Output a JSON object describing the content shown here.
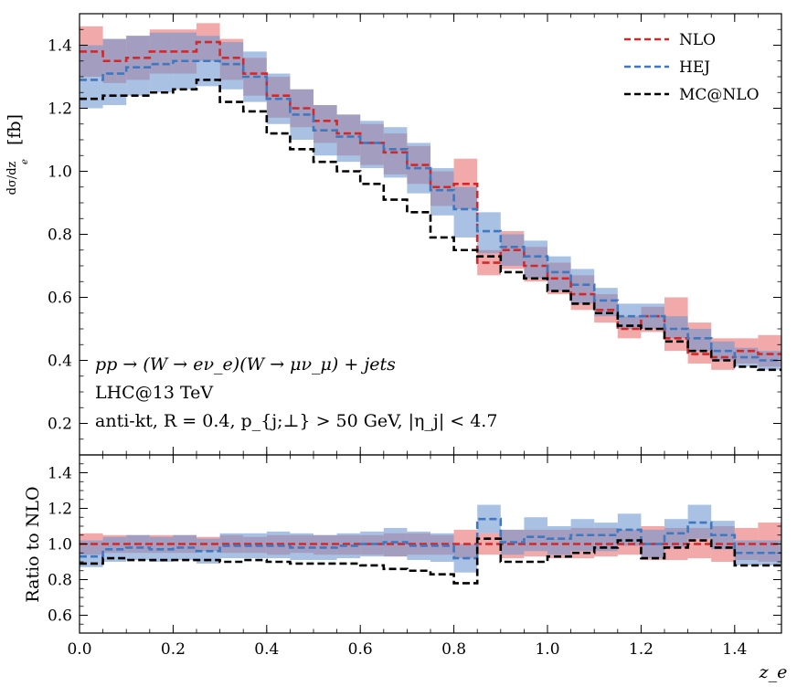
{
  "chart_data": {
    "type": "step",
    "x_edges": [
      0.0,
      0.05,
      0.1,
      0.15,
      0.2,
      0.25,
      0.3,
      0.35,
      0.4,
      0.45,
      0.5,
      0.55,
      0.6,
      0.65,
      0.7,
      0.75,
      0.8,
      0.85,
      0.9,
      0.95,
      1.0,
      1.05,
      1.1,
      1.15,
      1.2,
      1.25,
      1.3,
      1.35,
      1.4,
      1.45,
      1.5
    ],
    "xlabel": "z_e",
    "xlim": [
      0.0,
      1.5
    ],
    "x_ticks": [
      "0.0",
      "0.2",
      "0.4",
      "0.6",
      "0.8",
      "1.0",
      "1.2",
      "1.4"
    ],
    "x_tick_values": [
      0.0,
      0.2,
      0.4,
      0.6,
      0.8,
      1.0,
      1.2,
      1.4
    ],
    "legend": {
      "position": "top-right",
      "entries": [
        {
          "key": "NLO",
          "label": "NLO"
        },
        {
          "key": "HEJ",
          "label": "HEJ"
        },
        {
          "key": "MCNLO",
          "label": "MC@NLO"
        }
      ]
    },
    "colors": {
      "NLO": "#d62728",
      "NLO_band": "#e8706f",
      "HEJ": "#3f77c0",
      "HEJ_band": "#6f98cf",
      "MCNLO": "#000000"
    },
    "main_panel": {
      "ylabel_prefix": "dσ/dz",
      "ylabel_sub": "e",
      "ylabel_unit": "[fb]",
      "ylim": [
        0.1,
        1.5
      ],
      "y_ticks": [
        "0.2",
        "0.4",
        "0.6",
        "0.8",
        "1.0",
        "1.2",
        "1.4"
      ],
      "y_tick_values": [
        0.2,
        0.4,
        0.6,
        0.8,
        1.0,
        1.2,
        1.4
      ],
      "series": [
        {
          "name": "NLO",
          "values": [
            1.38,
            1.35,
            1.36,
            1.38,
            1.38,
            1.41,
            1.36,
            1.31,
            1.24,
            1.2,
            1.16,
            1.12,
            1.09,
            1.06,
            1.02,
            0.95,
            0.96,
            0.71,
            0.75,
            0.7,
            0.66,
            0.61,
            0.56,
            0.5,
            0.54,
            0.47,
            0.42,
            0.41,
            0.43,
            0.42
          ],
          "band_lo": [
            1.3,
            1.28,
            1.29,
            1.31,
            1.31,
            1.35,
            1.29,
            1.24,
            1.17,
            1.14,
            1.09,
            1.05,
            1.02,
            0.99,
            0.96,
            0.89,
            0.88,
            0.67,
            0.69,
            0.65,
            0.61,
            0.56,
            0.52,
            0.47,
            0.49,
            0.43,
            0.39,
            0.37,
            0.39,
            0.38
          ],
          "band_hi": [
            1.46,
            1.42,
            1.43,
            1.45,
            1.45,
            1.47,
            1.42,
            1.36,
            1.3,
            1.26,
            1.21,
            1.18,
            1.15,
            1.12,
            1.08,
            1.0,
            1.04,
            0.75,
            0.81,
            0.76,
            0.71,
            0.67,
            0.61,
            0.54,
            0.57,
            0.6,
            0.52,
            0.47,
            0.47,
            0.48
          ]
        },
        {
          "name": "HEJ",
          "values": [
            1.29,
            1.31,
            1.33,
            1.34,
            1.35,
            1.35,
            1.34,
            1.3,
            1.23,
            1.18,
            1.13,
            1.11,
            1.09,
            1.07,
            1.01,
            0.94,
            0.88,
            0.81,
            0.76,
            0.73,
            0.68,
            0.64,
            0.59,
            0.54,
            0.54,
            0.5,
            0.47,
            0.43,
            0.41,
            0.4
          ],
          "band_lo": [
            1.2,
            1.21,
            1.24,
            1.25,
            1.26,
            1.27,
            1.26,
            1.22,
            1.15,
            1.1,
            1.05,
            1.03,
            1.01,
            0.98,
            0.93,
            0.86,
            0.79,
            0.74,
            0.7,
            0.66,
            0.62,
            0.58,
            0.54,
            0.5,
            0.5,
            0.47,
            0.43,
            0.4,
            0.38,
            0.37
          ],
          "band_hi": [
            1.4,
            1.42,
            1.43,
            1.44,
            1.44,
            1.43,
            1.41,
            1.38,
            1.31,
            1.26,
            1.21,
            1.18,
            1.16,
            1.14,
            1.09,
            1.01,
            0.95,
            0.87,
            0.8,
            0.78,
            0.73,
            0.69,
            0.63,
            0.58,
            0.58,
            0.54,
            0.5,
            0.46,
            0.44,
            0.43
          ]
        },
        {
          "name": "MCNLO",
          "values": [
            1.23,
            1.24,
            1.24,
            1.25,
            1.26,
            1.29,
            1.22,
            1.19,
            1.12,
            1.07,
            1.03,
            1.0,
            0.96,
            0.91,
            0.87,
            0.79,
            0.75,
            0.73,
            0.68,
            0.66,
            0.62,
            0.58,
            0.55,
            0.51,
            0.5,
            0.46,
            0.43,
            0.4,
            0.38,
            0.37
          ]
        }
      ]
    },
    "ratio_panel": {
      "ylabel": "Ratio to NLO",
      "ylim": [
        0.5,
        1.5
      ],
      "y_ticks": [
        "0.6",
        "0.8",
        "1.0",
        "1.2",
        "1.4"
      ],
      "y_tick_values": [
        0.6,
        0.8,
        1.0,
        1.2,
        1.4
      ],
      "series": [
        {
          "name": "NLO",
          "values": [
            1.0,
            1.0,
            1.0,
            1.0,
            1.0,
            1.0,
            1.0,
            1.0,
            1.0,
            1.0,
            1.0,
            1.0,
            1.0,
            1.0,
            1.0,
            1.0,
            1.0,
            1.0,
            1.0,
            1.0,
            1.0,
            1.0,
            1.0,
            1.0,
            1.0,
            1.0,
            1.0,
            1.0,
            1.0,
            1.0
          ],
          "band_lo": [
            0.94,
            0.95,
            0.95,
            0.95,
            0.95,
            0.96,
            0.95,
            0.95,
            0.94,
            0.95,
            0.94,
            0.94,
            0.94,
            0.93,
            0.94,
            0.94,
            0.92,
            0.94,
            0.92,
            0.93,
            0.92,
            0.92,
            0.93,
            0.94,
            0.91,
            0.91,
            0.92,
            0.9,
            0.91,
            0.9
          ],
          "band_hi": [
            1.06,
            1.05,
            1.05,
            1.05,
            1.05,
            1.04,
            1.05,
            1.04,
            1.05,
            1.05,
            1.05,
            1.05,
            1.05,
            1.06,
            1.06,
            1.05,
            1.08,
            1.06,
            1.08,
            1.08,
            1.08,
            1.09,
            1.09,
            1.08,
            1.1,
            1.09,
            1.09,
            1.1,
            1.09,
            1.12
          ]
        },
        {
          "name": "HEJ",
          "values": [
            0.93,
            0.97,
            0.98,
            0.97,
            0.98,
            0.96,
            0.99,
            0.99,
            0.99,
            0.98,
            0.98,
            0.99,
            1.0,
            1.01,
            0.99,
            0.99,
            0.92,
            1.14,
            1.01,
            1.04,
            1.03,
            1.05,
            1.05,
            1.08,
            1.0,
            1.06,
            1.12,
            1.05,
            0.95,
            0.95
          ],
          "band_lo": [
            0.87,
            0.9,
            0.91,
            0.9,
            0.91,
            0.89,
            0.92,
            0.92,
            0.92,
            0.91,
            0.91,
            0.92,
            0.93,
            0.93,
            0.91,
            0.9,
            0.84,
            1.06,
            0.94,
            0.96,
            0.94,
            0.96,
            0.96,
            0.99,
            0.92,
            0.98,
            1.03,
            0.97,
            0.88,
            0.88
          ],
          "band_hi": [
            1.02,
            1.04,
            1.05,
            1.04,
            1.05,
            1.03,
            1.06,
            1.06,
            1.07,
            1.06,
            1.05,
            1.06,
            1.07,
            1.09,
            1.07,
            1.06,
            1.0,
            1.22,
            1.08,
            1.15,
            1.1,
            1.14,
            1.12,
            1.17,
            1.08,
            1.14,
            1.22,
            1.13,
            1.02,
            1.02
          ]
        },
        {
          "name": "MCNLO",
          "values": [
            0.89,
            0.92,
            0.91,
            0.91,
            0.91,
            0.91,
            0.9,
            0.91,
            0.9,
            0.89,
            0.89,
            0.89,
            0.88,
            0.86,
            0.85,
            0.83,
            0.78,
            1.03,
            0.9,
            0.9,
            0.93,
            0.95,
            0.98,
            1.02,
            0.92,
            0.98,
            1.02,
            0.98,
            0.88,
            0.88
          ]
        }
      ]
    },
    "annotations": [
      {
        "key": "process",
        "text": "pp → (W → eν_e)(W → μν_μ) + jets"
      },
      {
        "key": "energy",
        "text": "LHC@13 TeV"
      },
      {
        "key": "cuts",
        "text": "anti-kt, R = 0.4, p_{j;⊥} > 50 GeV, |η_j| < 4.7"
      }
    ]
  }
}
